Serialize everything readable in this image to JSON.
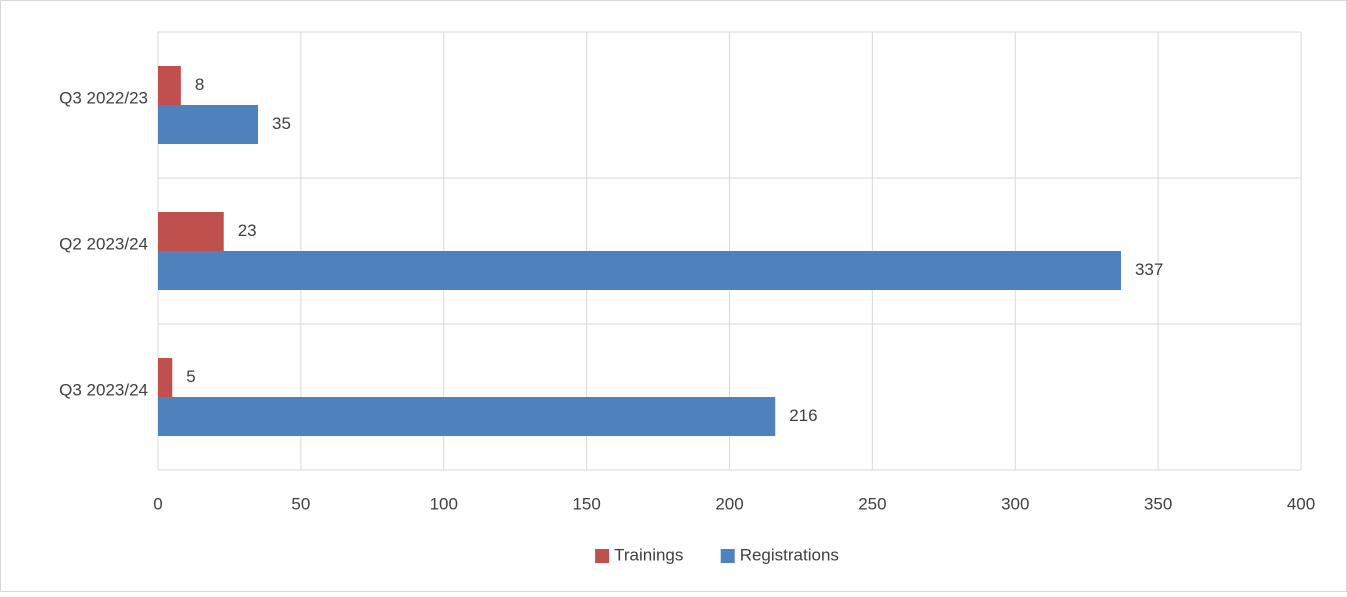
{
  "chart_data": {
    "type": "bar",
    "orientation": "horizontal",
    "categories": [
      "Q3 2022/23",
      "Q2 2023/24",
      "Q3 2023/24"
    ],
    "series": [
      {
        "name": "Trainings",
        "color": "#c0504d",
        "values": [
          8,
          23,
          5
        ]
      },
      {
        "name": "Registrations",
        "color": "#4f81bd",
        "values": [
          35,
          337,
          216
        ]
      }
    ],
    "xlim": [
      0,
      400
    ],
    "xticks": [
      0,
      50,
      100,
      150,
      200,
      250,
      300,
      350,
      400
    ],
    "grid": true,
    "legend": "bottom"
  }
}
